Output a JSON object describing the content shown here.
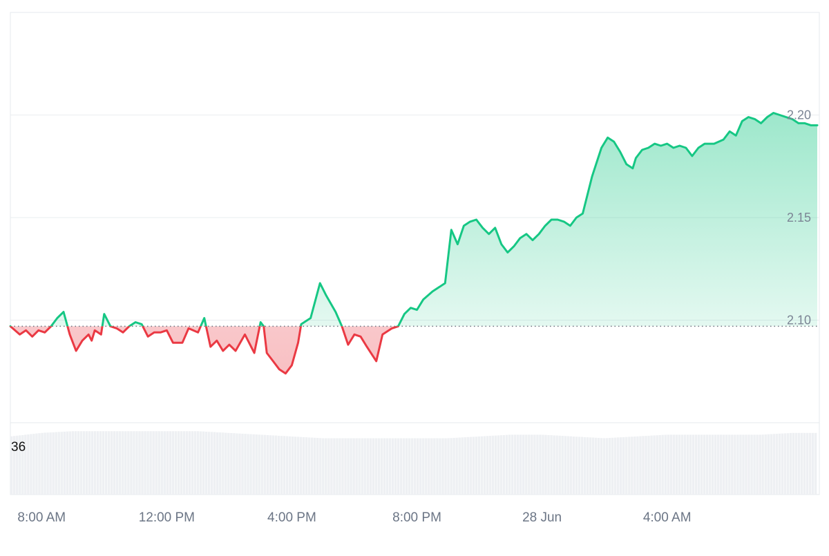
{
  "chart_data": {
    "type": "area",
    "baseline": 2.097,
    "ylim": [
      2.05,
      2.25
    ],
    "y_ticks": [
      "2.20",
      "2.15",
      "2.10"
    ],
    "y_tick_values": [
      2.2,
      2.15,
      2.1
    ],
    "x_ticks": [
      "8:00 AM",
      "12:00 PM",
      "4:00 PM",
      "8:00 PM",
      "28 Jun",
      "4:00 AM"
    ],
    "x_tick_hours": [
      8,
      12,
      16,
      20,
      24,
      28
    ],
    "x_range_hours": [
      7.0,
      32.8
    ],
    "colors": {
      "up_line": "#16c784",
      "down_line": "#ea3943",
      "up_fill": "#16c784",
      "down_fill": "#ea3943",
      "grid": "#eaecef",
      "volume": "#eef0f3"
    },
    "price": {
      "x": [
        7.0,
        7.3,
        7.5,
        7.7,
        7.9,
        8.1,
        8.3,
        8.5,
        8.7,
        8.9,
        9.1,
        9.3,
        9.5,
        9.6,
        9.7,
        9.9,
        10.0,
        10.2,
        10.4,
        10.6,
        10.8,
        11.0,
        11.2,
        11.4,
        11.6,
        11.8,
        12.0,
        12.2,
        12.5,
        12.7,
        13.0,
        13.2,
        13.4,
        13.6,
        13.8,
        14.0,
        14.2,
        14.5,
        14.8,
        15.0,
        15.1,
        15.2,
        15.4,
        15.6,
        15.8,
        16.0,
        16.2,
        16.3,
        16.6,
        16.9,
        17.1,
        17.4,
        17.6,
        17.8,
        18.0,
        18.2,
        18.4,
        18.7,
        18.9,
        19.2,
        19.4,
        19.6,
        19.8,
        20.0,
        20.2,
        20.5,
        20.9,
        21.1,
        21.3,
        21.5,
        21.7,
        21.9,
        22.1,
        22.3,
        22.5,
        22.7,
        22.9,
        23.1,
        23.3,
        23.5,
        23.7,
        23.9,
        24.1,
        24.3,
        24.5,
        24.7,
        24.9,
        25.1,
        25.3,
        25.6,
        25.9,
        26.1,
        26.3,
        26.5,
        26.7,
        26.9,
        27.0,
        27.2,
        27.4,
        27.6,
        27.8,
        28.0,
        28.2,
        28.4,
        28.6,
        28.8,
        29.0,
        29.2,
        29.5,
        29.8,
        30.0,
        30.2,
        30.4,
        30.6,
        30.8,
        31.0,
        31.2,
        31.4,
        31.6,
        31.8,
        32.0,
        32.2,
        32.4,
        32.6,
        32.8
      ],
      "y": [
        2.097,
        2.093,
        2.095,
        2.092,
        2.095,
        2.094,
        2.097,
        2.101,
        2.104,
        2.093,
        2.085,
        2.09,
        2.093,
        2.09,
        2.095,
        2.093,
        2.103,
        2.097,
        2.096,
        2.094,
        2.097,
        2.099,
        2.098,
        2.092,
        2.094,
        2.094,
        2.095,
        2.089,
        2.089,
        2.096,
        2.094,
        2.101,
        2.087,
        2.09,
        2.085,
        2.088,
        2.085,
        2.093,
        2.084,
        2.099,
        2.097,
        2.084,
        2.08,
        2.076,
        2.074,
        2.078,
        2.089,
        2.098,
        2.101,
        2.118,
        2.112,
        2.104,
        2.097,
        2.088,
        2.093,
        2.092,
        2.087,
        2.08,
        2.093,
        2.096,
        2.097,
        2.103,
        2.106,
        2.105,
        2.11,
        2.114,
        2.118,
        2.144,
        2.137,
        2.146,
        2.148,
        2.149,
        2.145,
        2.142,
        2.145,
        2.137,
        2.133,
        2.136,
        2.14,
        2.142,
        2.139,
        2.142,
        2.146,
        2.149,
        2.149,
        2.148,
        2.146,
        2.15,
        2.152,
        2.17,
        2.184,
        2.189,
        2.187,
        2.182,
        2.176,
        2.174,
        2.179,
        2.183,
        2.184,
        2.186,
        2.185,
        2.186,
        2.184,
        2.185,
        2.184,
        2.18,
        2.184,
        2.186,
        2.186,
        2.188,
        2.192,
        2.19,
        2.197,
        2.199,
        2.198,
        2.196,
        2.199,
        2.201,
        2.2,
        2.199,
        2.198,
        2.196,
        2.196,
        2.195,
        2.195
      ]
    },
    "volume": {
      "label": "36",
      "x": [
        7.0,
        8.0,
        9.0,
        10.0,
        11.0,
        12.0,
        13.0,
        14.0,
        15.0,
        16.0,
        17.0,
        18.0,
        19.0,
        20.0,
        21.0,
        22.0,
        23.0,
        24.0,
        25.0,
        26.0,
        27.0,
        28.0,
        29.0,
        30.0,
        31.0,
        32.0,
        32.8
      ],
      "y": [
        33,
        35,
        36,
        36,
        36,
        36,
        36,
        35,
        34,
        33,
        32,
        32,
        32,
        32,
        32,
        33,
        34,
        34,
        33,
        32,
        33,
        34,
        34,
        34,
        34,
        35,
        35
      ]
    }
  }
}
